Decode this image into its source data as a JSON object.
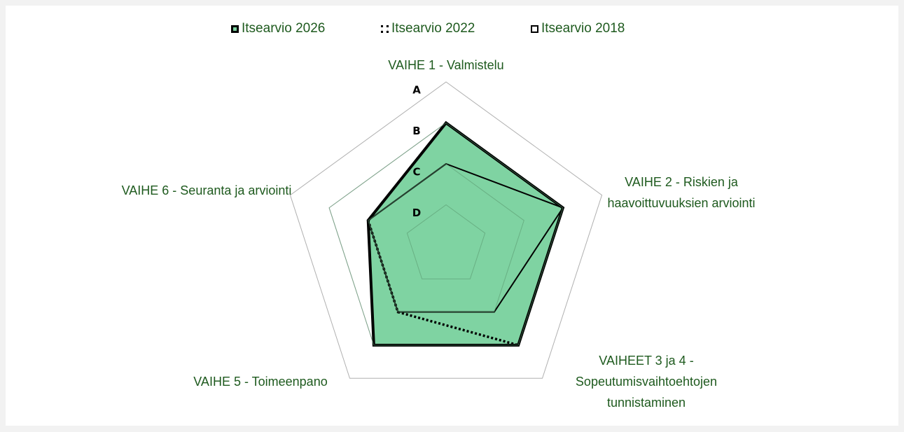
{
  "chart_data": {
    "type": "radar",
    "categories": [
      "VAIHE 1 - Valmistelu",
      "VAIHE 2 - Riskien ja haavoittuvuuksien arviointi",
      "VAIHEET 3 ja 4 - Sopeutumisvaihtoehtojen tunnistaminen",
      "VAIHE 5 - Toimeenpano",
      "VAIHE 6 - Seuranta ja arviointi"
    ],
    "series": [
      {
        "name": "Itsearvio 2026",
        "color": "#7fd3a2",
        "values": [
          3,
          3,
          3,
          3,
          2
        ]
      },
      {
        "name": "Itsearvio 2022",
        "color": "#000000",
        "values": [
          3,
          3,
          3,
          2,
          2
        ]
      },
      {
        "name": "Itsearvio 2018",
        "color": "#000000",
        "values": [
          2,
          3,
          2,
          2,
          2
        ]
      }
    ],
    "ylim": [
      0,
      4
    ],
    "yticks": [
      {
        "value": 1,
        "label": "D"
      },
      {
        "value": 2,
        "label": "C"
      },
      {
        "value": 3,
        "label": "B"
      },
      {
        "value": 4,
        "label": "A"
      }
    ],
    "grid": true,
    "legend": "top"
  }
}
